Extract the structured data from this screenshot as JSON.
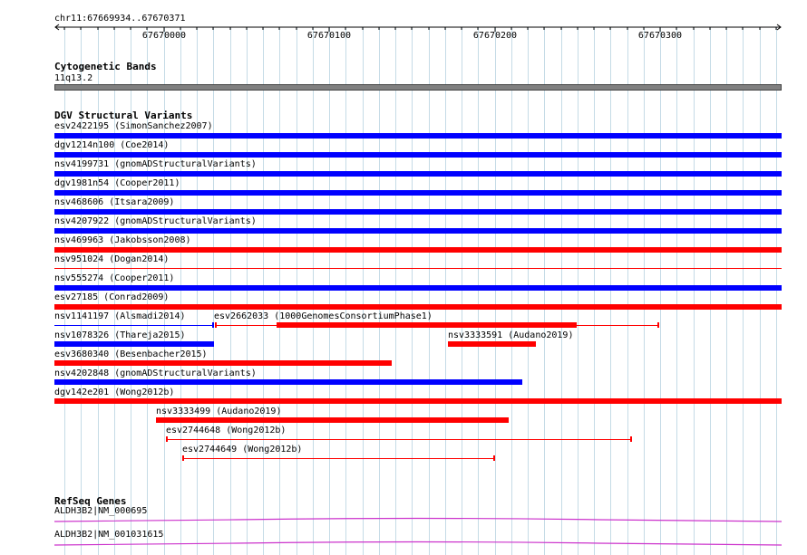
{
  "locus": "chr11:67669934..67670371",
  "ruler": {
    "ticks": [
      "67670000",
      "67670100",
      "67670200",
      "67670300"
    ]
  },
  "cytoband": {
    "title": "Cytogenetic Bands",
    "band_name": "11q13.2",
    "color": "#808080"
  },
  "dgv": {
    "title": "DGV Structural Variants",
    "colors": {
      "gain": "#0000ff",
      "loss": "#ff0000"
    },
    "features": [
      {
        "label": "esv2422195 (SimonSanchez2007)",
        "type": "gain"
      },
      {
        "label": "dgv1214n100 (Coe2014)",
        "type": "gain"
      },
      {
        "label": "nsv4199731 (gnomADStructuralVariants)",
        "type": "gain"
      },
      {
        "label": "dgv1981n54 (Cooper2011)",
        "type": "gain"
      },
      {
        "label": "nsv468606 (Itsara2009)",
        "type": "gain"
      },
      {
        "label": "nsv4207922 (gnomADStructuralVariants)",
        "type": "gain"
      },
      {
        "label": "nsv469963 (Jakobsson2008)",
        "type": "loss"
      },
      {
        "label": "nsv951024 (Dogan2014)",
        "type": "loss"
      },
      {
        "label": "nsv555274 (Cooper2011)",
        "type": "gain"
      },
      {
        "label": "esv27185 (Conrad2009)",
        "type": "loss"
      },
      {
        "label": "nsv1141197 (Alsmadi2014)",
        "type": "gain"
      },
      {
        "label": "esv2662033 (1000GenomesConsortiumPhase1)",
        "type": "loss"
      },
      {
        "label": "nsv1078326 (Thareja2015)",
        "type": "gain"
      },
      {
        "label": "nsv3333591 (Audano2019)",
        "type": "loss"
      },
      {
        "label": "esv3680340 (Besenbacher2015)",
        "type": "loss"
      },
      {
        "label": "nsv4202848 (gnomADStructuralVariants)",
        "type": "gain"
      },
      {
        "label": "dgv142e201 (Wong2012b)",
        "type": "loss"
      },
      {
        "label": "nsv3333499 (Audano2019)",
        "type": "loss"
      },
      {
        "label": "esv2744648 (Wong2012b)",
        "type": "loss"
      },
      {
        "label": "esv2744649 (Wong2012b)",
        "type": "loss"
      }
    ]
  },
  "refseq": {
    "title": "RefSeq Genes",
    "color": "#cc33cc",
    "genes": [
      {
        "label": "ALDH3B2|NM_000695"
      },
      {
        "label": "ALDH3B2|NM_001031615"
      }
    ]
  }
}
